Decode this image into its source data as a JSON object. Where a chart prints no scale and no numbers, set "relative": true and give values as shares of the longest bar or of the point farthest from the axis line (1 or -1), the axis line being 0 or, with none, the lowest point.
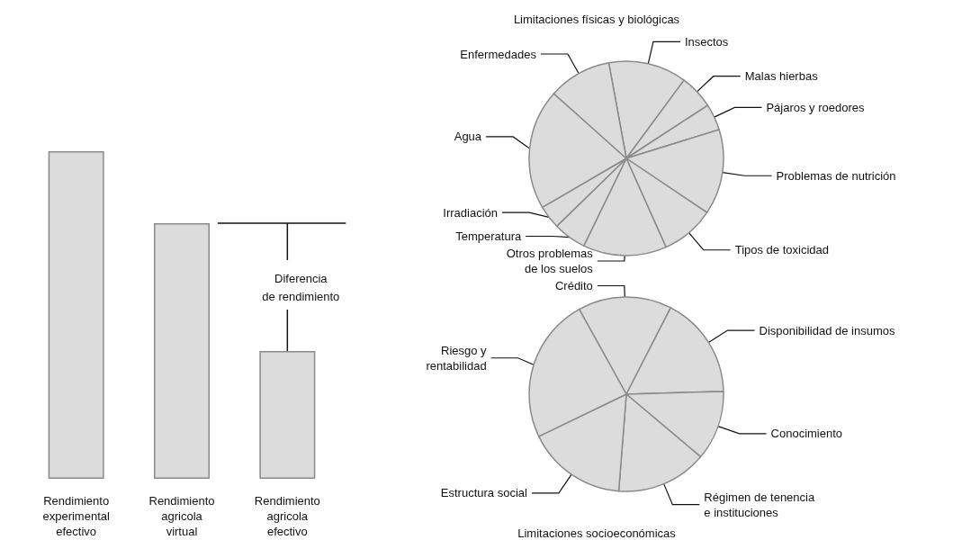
{
  "chart_data": [
    {
      "type": "bar",
      "relative": true,
      "categories": [
        "Rendimiento\nexperimental\nefectivo",
        "Rendimiento\nagricola\nvirtual",
        "Rendimiento\nagricola\nefectivo"
      ],
      "values": [
        1,
        0.78,
        0.39
      ],
      "color": "#dcdcdc",
      "annotations": [
        "Diferencia\nde rendimiento"
      ],
      "ref_lines": [
        {
          "axis": "y",
          "value": 0.78
        }
      ]
    },
    {
      "type": "pie",
      "title": "Limitaciones físicas y biológicas",
      "categories": [
        "Insectos",
        "Malas hierbas",
        "Pájaros y roedores",
        "Problemas de nutrición",
        "Tipos de toxicidad",
        "Otros problemas\nde los suelos",
        "Temperatura",
        "Irradiación",
        "Agua",
        "Enfermedades"
      ],
      "values": [
        13.0,
        5.7,
        4.4,
        14.2,
        8.9,
        13.9,
        5.5,
        3.9,
        20.0,
        10.5
      ],
      "colors": [
        "#dcdcdc",
        "#dcdcdc",
        "#dcdcdc",
        "#dcdcdc",
        "#dcdcdc",
        "#dcdcdc",
        "#dcdcdc",
        "#dcdcdc",
        "#dcdcdc",
        "#dcdcdc"
      ]
    },
    {
      "type": "pie",
      "title": "Limitaciones socioeconómicas",
      "categories": [
        "Crédito",
        "Disponibilidad de insumos",
        "Conocimiento",
        "Régimen de tenencia\ne instituciones",
        "Estructura social",
        "Riesgo y\nrentabilidad"
      ],
      "values": [
        15.6,
        17.0,
        11.6,
        15.1,
        16.6,
        24.1
      ],
      "colors": [
        "#dcdcdc",
        "#dcdcdc",
        "#dcdcdc",
        "#dcdcdc",
        "#dcdcdc",
        "#dcdcdc"
      ]
    }
  ]
}
